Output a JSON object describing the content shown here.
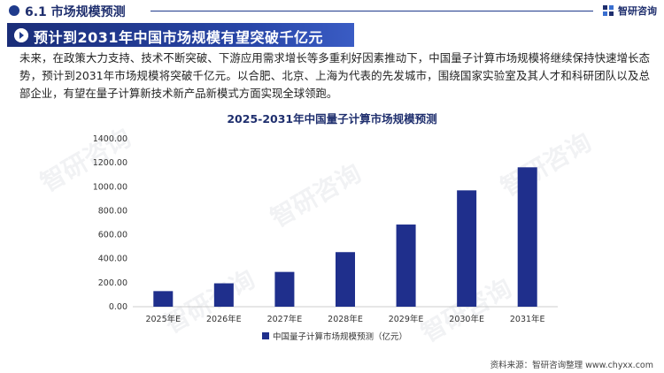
{
  "header": {
    "section_title": "6.1 市场规模预测",
    "brand_name": "智研咨询"
  },
  "headline": "预计到2031年中国市场规模有望突破千亿元",
  "paragraph": "未来，在政策大力支持、技术不断突破、下游应用需求增长等多重利好因素推动下，中国量子计算市场规模将继续保持快速增长态势，预计到2031年市场规模将突破千亿元。以合肥、北京、上海为代表的先发城市，围绕国家实验室及其人才和科研团队以及总部企业，有望在量子计算新技术新产品新模式方面实现全球领跑。",
  "watermark_text": "智研咨询",
  "source": "资料来源：智研咨询整理  www.chyxx.com",
  "colors": {
    "bar": "#1f2f8c",
    "accent": "#1f3b8c"
  },
  "chart_data": {
    "type": "bar",
    "title": "2025-2031年中国量子计算市场规模预测",
    "categories": [
      "2025年E",
      "2026年E",
      "2027年E",
      "2028年E",
      "2029年E",
      "2030年E",
      "2031年E"
    ],
    "series": [
      {
        "name": "中国量子计算市场规模预测（亿元）",
        "values": [
          130,
          195,
          290,
          455,
          685,
          970,
          1162
        ]
      }
    ],
    "ylim": [
      0,
      1400
    ],
    "yticks": [
      "0.00",
      "200.00",
      "400.00",
      "600.00",
      "800.00",
      "1000.00",
      "1200.00",
      "1400.00"
    ],
    "grid": false,
    "legend": "bottom"
  }
}
